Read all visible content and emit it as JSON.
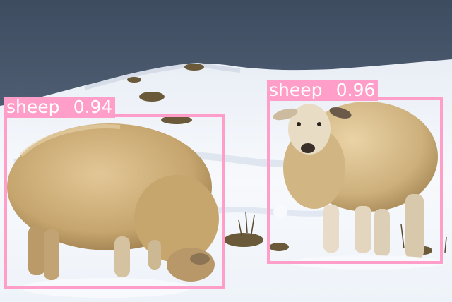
{
  "image": {
    "description_tag": "photo"
  },
  "detections": [
    {
      "label": "sheep",
      "confidence": "0.94"
    },
    {
      "label": "sheep",
      "confidence": "0.96"
    }
  ],
  "colors": {
    "box": "#ff9ec8",
    "label_text": "#ffffff",
    "sky": "#4d5e73",
    "snow": "#f2f6fb",
    "wool": "#c9a970"
  }
}
